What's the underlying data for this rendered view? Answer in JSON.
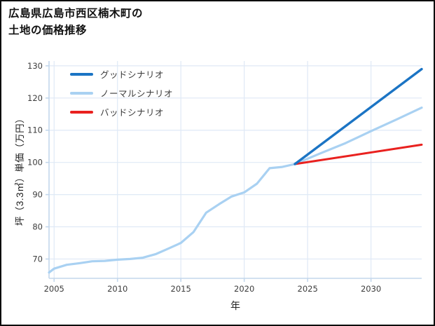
{
  "page": {
    "title_line1": "広島県広島市西区楠木町の",
    "title_line2": "土地の価格推移"
  },
  "chart_data": {
    "type": "line",
    "title": "広島県広島市西区楠木町の土地の価格推移",
    "xlabel": "年",
    "ylabel": "坪（3.3㎡）単価（万円）",
    "xlim": [
      2004.6,
      2034
    ],
    "ylim": [
      64,
      131.5
    ],
    "xticks": [
      2005,
      2010,
      2015,
      2020,
      2025,
      2030
    ],
    "yticks": [
      70,
      80,
      90,
      100,
      110,
      120,
      130
    ],
    "grid": true,
    "legend_position": "upper-left",
    "colors": {
      "grid": "#dfe9f6",
      "spine": "#c3d7ec",
      "tick_label": "#3c3c3c"
    },
    "series": [
      {
        "name": "グッドシナリオ",
        "color": "#1b74c4",
        "width": 3.4,
        "x": [
          2024,
          2034
        ],
        "y": [
          99.5,
          129.0
        ]
      },
      {
        "name": "ノーマルシナリオ",
        "color": "#a9d1f2",
        "width": 3.2,
        "x": [
          2004.6,
          2005,
          2006,
          2007,
          2008,
          2009,
          2010,
          2011,
          2012,
          2013,
          2014,
          2015,
          2016,
          2017,
          2018,
          2019,
          2020,
          2021,
          2022,
          2023,
          2024,
          2026,
          2028,
          2030,
          2032,
          2034
        ],
        "y": [
          65.8,
          67.0,
          68.2,
          68.7,
          69.3,
          69.4,
          69.8,
          70.0,
          70.4,
          71.5,
          73.2,
          75.0,
          78.4,
          84.4,
          87.0,
          89.4,
          90.7,
          93.4,
          98.2,
          98.6,
          99.5,
          102.8,
          106.0,
          109.7,
          113.3,
          117.0
        ]
      },
      {
        "name": "バッドシナリオ",
        "color": "#e9211f",
        "width": 3.0,
        "x": [
          2024,
          2034
        ],
        "y": [
          99.5,
          105.5
        ]
      }
    ]
  }
}
